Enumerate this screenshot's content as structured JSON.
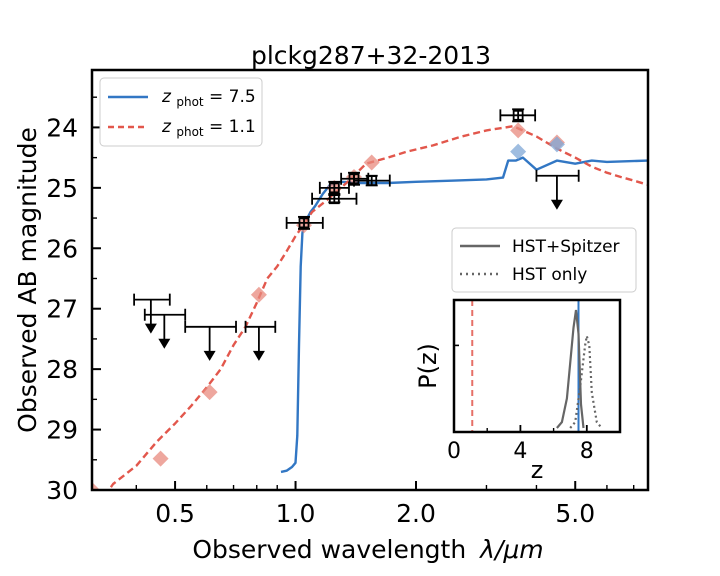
{
  "chart_data": {
    "type": "scatter",
    "title": "plckg287+32-2013",
    "xlabel": "Observed wavelength",
    "xlabel_math": "λ/μm",
    "ylabel": "Observed AB magnitude",
    "xscale": "log",
    "xlim": [
      0.31,
      7.6
    ],
    "ylim": [
      30.0,
      23.05
    ],
    "x_ticks": [
      0.5,
      1.0,
      2.0,
      5.0
    ],
    "x_tick_labels": [
      "0.5",
      "1.0",
      "2.0",
      "5.0"
    ],
    "y_ticks": [
      24,
      25,
      26,
      27,
      28,
      29,
      30
    ],
    "y_tick_labels": [
      "24",
      "25",
      "26",
      "27",
      "28",
      "29",
      "30"
    ],
    "legend": {
      "position": "top-left",
      "entries": [
        {
          "prefix": "z",
          "sub": "phot",
          "label": " = 7.5",
          "color": "#3277c4",
          "style": "solid"
        },
        {
          "prefix": "z",
          "sub": "phot",
          "label": " = 1.1",
          "color": "#e2574c",
          "style": "dashed"
        }
      ]
    },
    "series": [
      {
        "name": "z_phot = 7.5 model",
        "color": "#3277c4",
        "points": [
          [
            0.92,
            29.7
          ],
          [
            0.95,
            29.68
          ],
          [
            0.98,
            29.62
          ],
          [
            1.0,
            29.55
          ],
          [
            1.01,
            29.1
          ],
          [
            1.02,
            27.6
          ],
          [
            1.03,
            26.3
          ],
          [
            1.04,
            25.75
          ],
          [
            1.05,
            25.6
          ],
          [
            1.06,
            25.5
          ],
          [
            1.07,
            25.5
          ],
          [
            1.09,
            25.4
          ],
          [
            1.12,
            25.3
          ],
          [
            1.17,
            25.1
          ],
          [
            1.22,
            24.95
          ],
          [
            1.3,
            24.9
          ],
          [
            1.45,
            24.92
          ],
          [
            1.7,
            24.92
          ],
          [
            2.0,
            24.9
          ],
          [
            2.5,
            24.88
          ],
          [
            3.0,
            24.86
          ],
          [
            3.3,
            24.83
          ],
          [
            3.4,
            24.55
          ],
          [
            3.55,
            24.55
          ],
          [
            3.7,
            24.5
          ],
          [
            4.0,
            24.7
          ],
          [
            4.5,
            24.55
          ],
          [
            5.0,
            24.6
          ],
          [
            5.5,
            24.55
          ],
          [
            6.0,
            24.57
          ],
          [
            7.6,
            24.55
          ]
        ]
      },
      {
        "name": "z_phot = 1.1 model",
        "color": "#e2574c",
        "points": [
          [
            0.31,
            30.4
          ],
          [
            0.35,
            29.9
          ],
          [
            0.4,
            29.6
          ],
          [
            0.45,
            29.2
          ],
          [
            0.5,
            28.9
          ],
          [
            0.55,
            28.6
          ],
          [
            0.6,
            28.3
          ],
          [
            0.65,
            28.0
          ],
          [
            0.7,
            27.6
          ],
          [
            0.75,
            27.3
          ],
          [
            0.8,
            26.9
          ],
          [
            0.85,
            26.5
          ],
          [
            0.9,
            26.3
          ],
          [
            0.95,
            26.05
          ],
          [
            1.0,
            25.8
          ],
          [
            1.05,
            25.6
          ],
          [
            1.1,
            25.4
          ],
          [
            1.2,
            25.2
          ],
          [
            1.3,
            25.0
          ],
          [
            1.4,
            24.8
          ],
          [
            1.5,
            24.6
          ],
          [
            1.7,
            24.5
          ],
          [
            1.9,
            24.4
          ],
          [
            2.2,
            24.3
          ],
          [
            2.6,
            24.15
          ],
          [
            3.0,
            24.05
          ],
          [
            3.5,
            23.98
          ],
          [
            4.0,
            24.15
          ],
          [
            4.5,
            24.35
          ],
          [
            5.0,
            24.5
          ],
          [
            5.5,
            24.65
          ],
          [
            6.0,
            24.75
          ],
          [
            6.5,
            24.82
          ],
          [
            7.0,
            24.88
          ],
          [
            7.6,
            24.95
          ]
        ]
      }
    ],
    "model_photometry": [
      {
        "name": "z=1.1 synthetic",
        "color": "#e8897e",
        "points": [
          [
            0.31,
            30.0
          ],
          [
            0.46,
            29.48
          ],
          [
            0.61,
            28.38
          ],
          [
            0.81,
            26.77
          ],
          [
            1.05,
            25.62
          ],
          [
            1.25,
            25.0
          ],
          [
            1.4,
            24.82
          ],
          [
            1.55,
            24.58
          ],
          [
            3.6,
            24.05
          ],
          [
            4.5,
            24.25
          ]
        ]
      },
      {
        "name": "z=7.5 synthetic",
        "color": "#7fa7d6",
        "points": [
          [
            3.6,
            24.4
          ],
          [
            4.5,
            24.28
          ]
        ]
      }
    ],
    "detections": [
      {
        "x": 1.05,
        "y": 25.58,
        "xerr": [
          0.1,
          0.12
        ],
        "yerr": 0.1
      },
      {
        "x": 1.25,
        "y": 25.18,
        "xerr": [
          0.15,
          0.17
        ],
        "yerr": 0.06
      },
      {
        "x": 1.25,
        "y": 25.0,
        "xerr": [
          0.1,
          0.11
        ],
        "yerr": 0.1
      },
      {
        "x": 1.4,
        "y": 24.85,
        "xerr": [
          0.1,
          0.12
        ],
        "yerr": 0.1
      },
      {
        "x": 1.55,
        "y": 24.88,
        "xerr": [
          0.15,
          0.17
        ],
        "yerr": 0.08
      },
      {
        "x": 3.6,
        "y": 23.8,
        "xerr": [
          0.35,
          0.37
        ],
        "yerr": 0.1
      }
    ],
    "upper_limits": [
      {
        "x": 0.435,
        "y": 26.85,
        "xerr": [
          0.04,
          0.05
        ]
      },
      {
        "x": 0.47,
        "y": 27.1,
        "xerr": [
          0.05,
          0.06
        ]
      },
      {
        "x": 0.61,
        "y": 27.3,
        "xerr": [
          0.08,
          0.1
        ]
      },
      {
        "x": 0.81,
        "y": 27.3,
        "xerr": [
          0.06,
          0.08
        ]
      },
      {
        "x": 4.5,
        "y": 24.8,
        "xerr": [
          0.5,
          0.6
        ]
      }
    ],
    "inset": {
      "ylabel": "P(z)",
      "xlabel": "z",
      "xlim": [
        0,
        10
      ],
      "x_ticks": [
        0,
        4,
        8
      ],
      "x_tick_labels": [
        "0",
        "4",
        "8"
      ],
      "z_phot_low": 1.1,
      "z_phot_high": 7.5,
      "legend": [
        {
          "label": "HST+Spitzer",
          "style": "solid",
          "color": "#666666"
        },
        {
          "label": "HST only",
          "style": "dotted",
          "color": "#666666"
        }
      ],
      "series": [
        {
          "name": "HST+Spitzer",
          "color": "#666666",
          "style": "solid",
          "points": [
            [
              6.2,
              0.0
            ],
            [
              6.5,
              0.05
            ],
            [
              6.8,
              0.25
            ],
            [
              7.0,
              0.55
            ],
            [
              7.2,
              0.85
            ],
            [
              7.35,
              1.0
            ],
            [
              7.5,
              0.8
            ],
            [
              7.65,
              0.2
            ],
            [
              7.8,
              0.0
            ]
          ]
        },
        {
          "name": "HST only",
          "color": "#666666",
          "style": "dotted",
          "points": [
            [
              7.0,
              0.0
            ],
            [
              7.3,
              0.05
            ],
            [
              7.6,
              0.35
            ],
            [
              7.9,
              0.7
            ],
            [
              8.0,
              0.78
            ],
            [
              8.15,
              0.7
            ],
            [
              8.3,
              0.3
            ],
            [
              8.6,
              0.05
            ],
            [
              8.9,
              0.0
            ]
          ]
        }
      ]
    }
  }
}
